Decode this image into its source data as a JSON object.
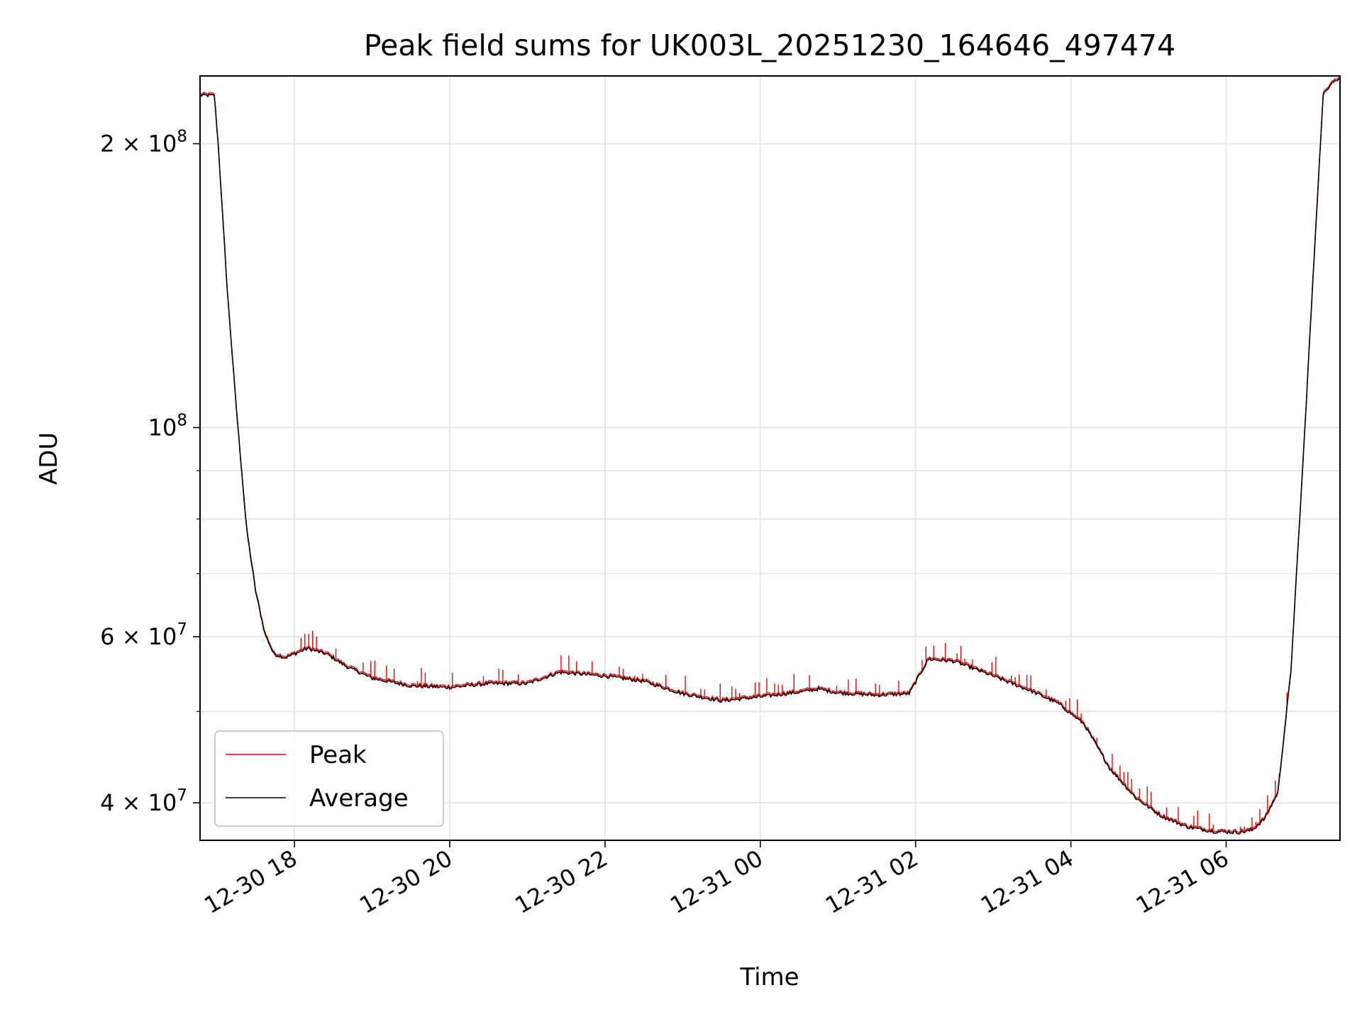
{
  "chart_data": {
    "type": "line",
    "title": "Peak field sums for UK003L_20251230_164646_497474",
    "xlabel": "Time",
    "ylabel": "ADU",
    "y_scale": "log",
    "ylim": [
      36500000,
      236000000
    ],
    "xlim": [
      "2025-12-30 16:47",
      "2025-12-31 07:28"
    ],
    "grid": true,
    "legend_position": "lower-left",
    "x_ticks": [
      {
        "t": "2025-12-30 18:00",
        "label": "12-30 18"
      },
      {
        "t": "2025-12-30 20:00",
        "label": "12-30 20"
      },
      {
        "t": "2025-12-30 22:00",
        "label": "12-30 22"
      },
      {
        "t": "2025-12-31 00:00",
        "label": "12-31 00"
      },
      {
        "t": "2025-12-31 02:00",
        "label": "12-31 02"
      },
      {
        "t": "2025-12-31 04:00",
        "label": "12-31 04"
      },
      {
        "t": "2025-12-31 06:00",
        "label": "12-31 06"
      }
    ],
    "y_ticks": [
      {
        "value": 200000000,
        "mant": "2",
        "exp": "8"
      },
      {
        "value": 100000000,
        "mant": "",
        "exp": "8"
      },
      {
        "value": 60000000,
        "mant": "6",
        "exp": "7"
      },
      {
        "value": 40000000,
        "mant": "4",
        "exp": "7"
      }
    ],
    "y_minor_ticks": [
      50000000,
      70000000,
      80000000,
      90000000,
      300000000
    ],
    "series": [
      {
        "name": "Average",
        "color": "#000000",
        "x": [
          "2025-12-30 16:47",
          "2025-12-30 16:58",
          "2025-12-30 17:01",
          "2025-12-30 17:08",
          "2025-12-30 17:15",
          "2025-12-30 17:23",
          "2025-12-30 17:30",
          "2025-12-30 17:37",
          "2025-12-30 17:44",
          "2025-12-30 17:53",
          "2025-12-30 18:10",
          "2025-12-30 18:25",
          "2025-12-30 18:40",
          "2025-12-30 19:00",
          "2025-12-30 19:30",
          "2025-12-30 20:00",
          "2025-12-30 20:30",
          "2025-12-30 21:00",
          "2025-12-30 21:25",
          "2025-12-30 22:00",
          "2025-12-30 22:30",
          "2025-12-30 23:00",
          "2025-12-30 23:30",
          "2025-12-31 00:00",
          "2025-12-31 00:30",
          "2025-12-31 00:45",
          "2025-12-31 01:00",
          "2025-12-31 01:30",
          "2025-12-31 01:55",
          "2025-12-31 02:10",
          "2025-12-31 02:30",
          "2025-12-31 03:00",
          "2025-12-31 03:30",
          "2025-12-31 03:50",
          "2025-12-31 04:10",
          "2025-12-31 04:30",
          "2025-12-31 04:50",
          "2025-12-31 05:10",
          "2025-12-31 05:30",
          "2025-12-31 05:50",
          "2025-12-31 06:10",
          "2025-12-31 06:20",
          "2025-12-31 06:30",
          "2025-12-31 06:40",
          "2025-12-31 06:50",
          "2025-12-31 07:00",
          "2025-12-31 07:10",
          "2025-12-31 07:15",
          "2025-12-31 07:22",
          "2025-12-31 07:28"
        ],
        "values": [
          225000000,
          225000000,
          200000000,
          140000000,
          105000000,
          78000000,
          67000000,
          60500000,
          57500000,
          57000000,
          58300000,
          57500000,
          55800000,
          54200000,
          53200000,
          53000000,
          53500000,
          53500000,
          55000000,
          54500000,
          53800000,
          52200000,
          51300000,
          51800000,
          52400000,
          52800000,
          52300000,
          52000000,
          52200000,
          56800000,
          56500000,
          54500000,
          52500000,
          51000000,
          48500000,
          43500000,
          40500000,
          38700000,
          37700000,
          37300000,
          37200000,
          37400000,
          38500000,
          41000000,
          55000000,
          95000000,
          170000000,
          225000000,
          233000000,
          234000000
        ]
      },
      {
        "name": "Peak",
        "color": "#ff0000",
        "spike_pct": 0.035
      }
    ]
  }
}
